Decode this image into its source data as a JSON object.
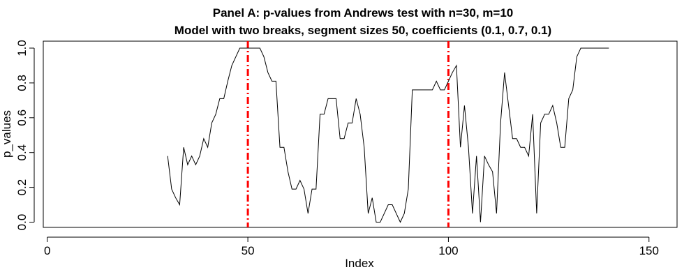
{
  "chart_data": {
    "type": "line",
    "title": "Panel A: p-values from Andrews test with n=30, m=10",
    "subtitle": "Model with two breaks, segment sizes 50, coefficients (0.1, 0.7, 0.1)",
    "xlabel": "Index",
    "ylabel": "p_values",
    "xlim": [
      -1,
      157
    ],
    "ylim": [
      -0.03,
      1.04
    ],
    "xticks": [
      0,
      50,
      100,
      150
    ],
    "yticks": [
      0.0,
      0.2,
      0.4,
      0.6,
      0.8,
      1.0
    ],
    "xtick_labels": [
      "0",
      "50",
      "100",
      "150"
    ],
    "ytick_labels": [
      "0.0",
      "0.2",
      "0.4",
      "0.6",
      "0.8",
      "1.0"
    ],
    "grid": false,
    "line_color": "#000000",
    "breaks_color": "#ff0000",
    "breaks": [
      50,
      100
    ],
    "series": [
      {
        "x": [
          30,
          31,
          32,
          33,
          34,
          35,
          36,
          37,
          38,
          39,
          40,
          41,
          42,
          43,
          44,
          45,
          46,
          47,
          48,
          49,
          50,
          51,
          52,
          53,
          54,
          55,
          56,
          57,
          58,
          59,
          60,
          61,
          62,
          63,
          64,
          65,
          66,
          67,
          68,
          69,
          70,
          71,
          72,
          73,
          74,
          75,
          76,
          77,
          78,
          79,
          80,
          81,
          82,
          83,
          84,
          85,
          86,
          87,
          88,
          89,
          90,
          91,
          92,
          93,
          94,
          95,
          96,
          97,
          98,
          99,
          100,
          101,
          102,
          103,
          104,
          105,
          106,
          107,
          108,
          109,
          110,
          111,
          112,
          113,
          114,
          115,
          116,
          117,
          118,
          119,
          120,
          121,
          122,
          123,
          124,
          125,
          126,
          127,
          128,
          129,
          130,
          131,
          132,
          133,
          134,
          135,
          136,
          137,
          138,
          139,
          140
        ],
        "values": [
          0.38,
          0.19,
          0.14,
          0.1,
          0.43,
          0.33,
          0.38,
          0.33,
          0.38,
          0.48,
          0.43,
          0.57,
          0.62,
          0.71,
          0.71,
          0.81,
          0.9,
          0.95,
          1.0,
          1.0,
          1.0,
          1.0,
          1.0,
          1.0,
          0.95,
          0.86,
          0.81,
          0.81,
          0.43,
          0.43,
          0.29,
          0.19,
          0.19,
          0.24,
          0.19,
          0.05,
          0.19,
          0.19,
          0.62,
          0.62,
          0.71,
          0.71,
          0.71,
          0.48,
          0.48,
          0.57,
          0.57,
          0.71,
          0.62,
          0.43,
          0.05,
          0.14,
          0.0,
          0.0,
          0.05,
          0.1,
          0.1,
          0.05,
          0.0,
          0.05,
          0.19,
          0.76,
          0.76,
          0.76,
          0.76,
          0.76,
          0.76,
          0.81,
          0.76,
          0.76,
          0.81,
          0.86,
          0.9,
          0.43,
          0.67,
          0.43,
          0.05,
          0.38,
          0.0,
          0.38,
          0.33,
          0.29,
          0.05,
          0.57,
          0.86,
          0.67,
          0.48,
          0.48,
          0.43,
          0.43,
          0.38,
          0.62,
          0.05,
          0.57,
          0.62,
          0.62,
          0.67,
          0.57,
          0.43,
          0.43,
          0.71,
          0.76,
          0.95,
          1.0,
          1.0,
          1.0,
          1.0,
          1.0,
          1.0,
          1.0,
          1.0
        ]
      }
    ]
  }
}
